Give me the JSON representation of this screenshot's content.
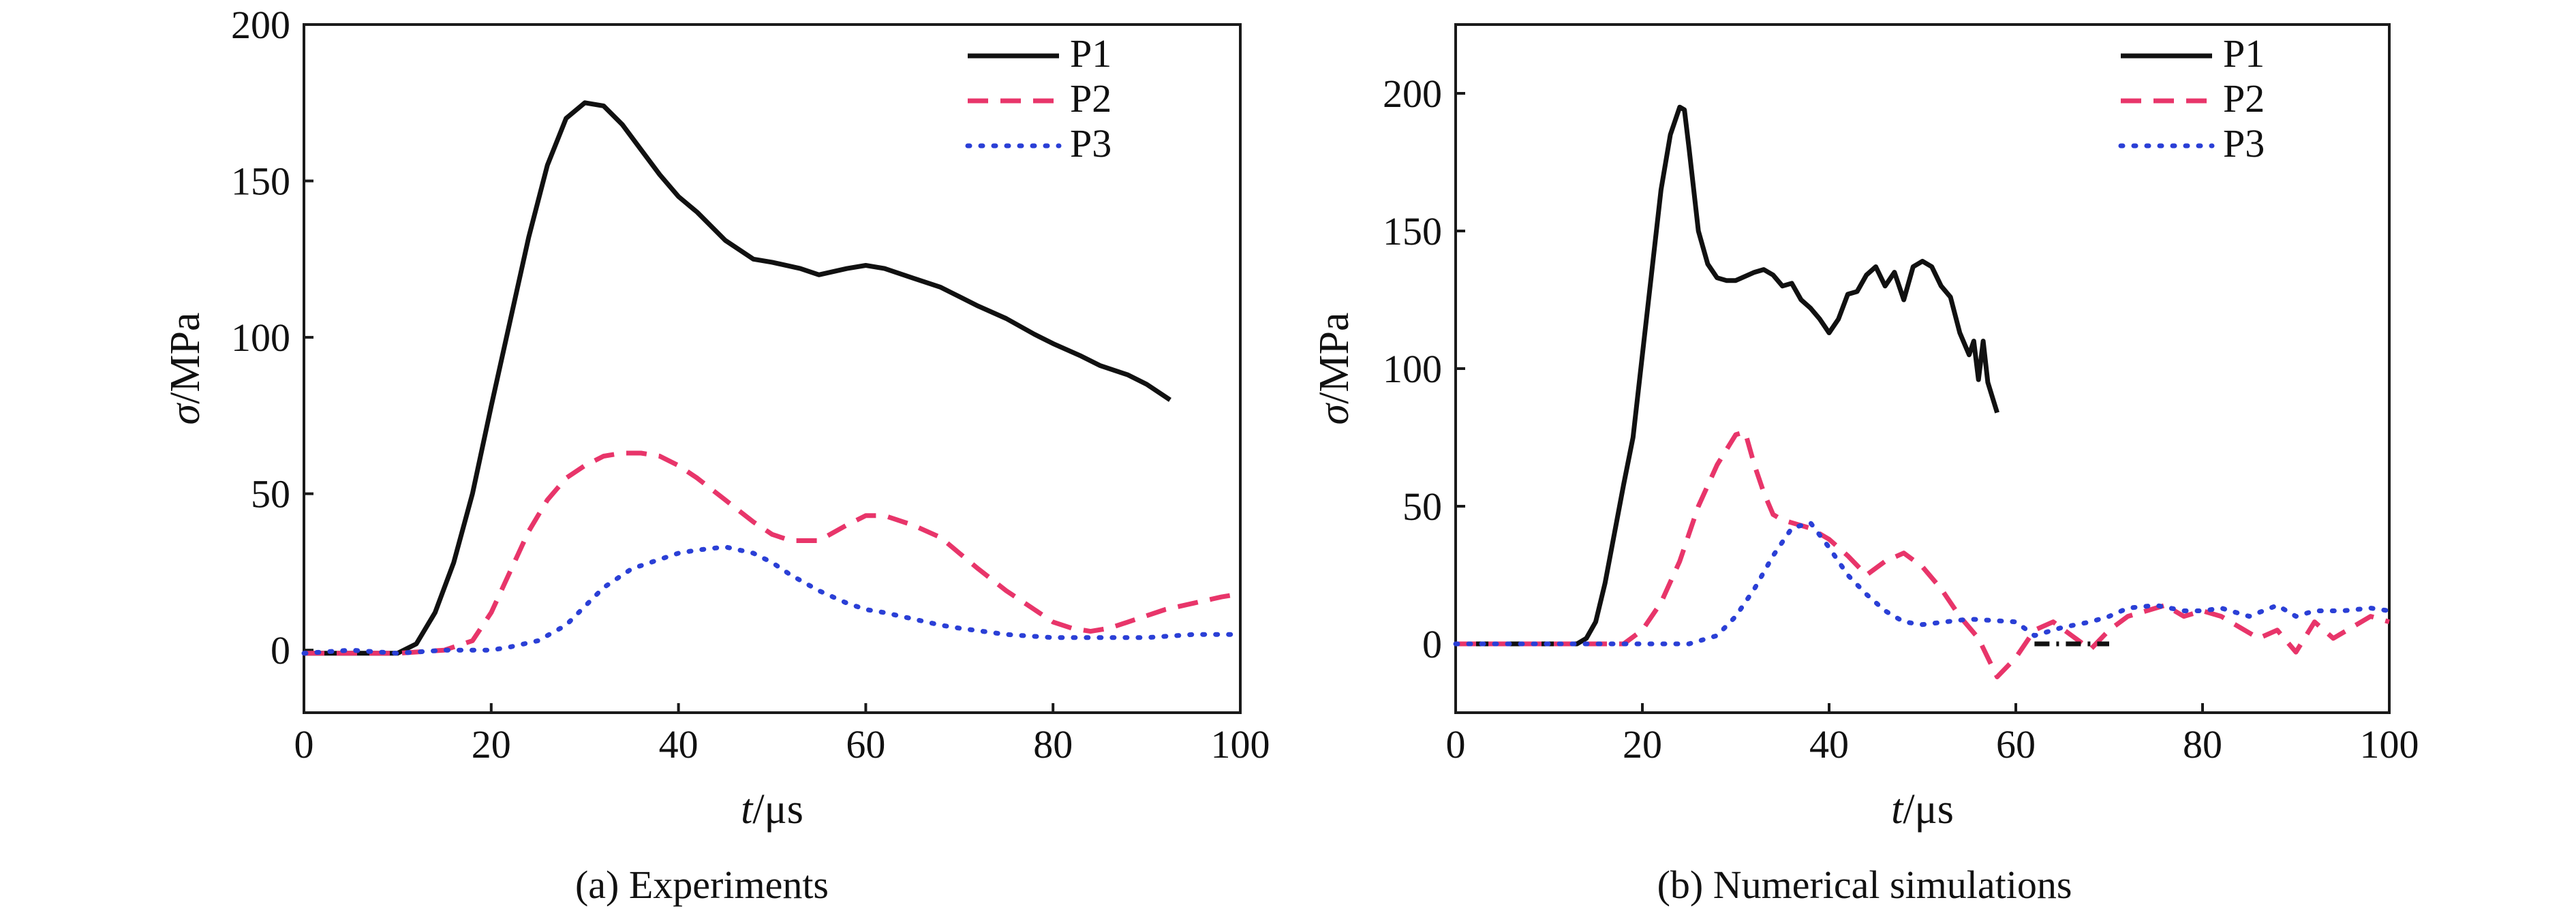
{
  "figure_captions": [
    "(a) Experiments",
    "(b) Numerical simulations"
  ],
  "colors": {
    "P1": "#111111",
    "P2": "#e8356a",
    "P3": "#2a3fd6"
  },
  "chart_data": [
    {
      "type": "line",
      "caption": "(a) Experiments",
      "title": "",
      "xlabel_italic": "t",
      "xlabel_unit": "/μs",
      "ylabel_italic": "σ",
      "ylabel_unit": "/MPa",
      "xlim": [
        0,
        100
      ],
      "ylim": [
        -20,
        200
      ],
      "xticks": [
        0,
        20,
        40,
        60,
        80,
        100
      ],
      "yticks": [
        0,
        50,
        100,
        150,
        200
      ],
      "grid": false,
      "legend_position": "top-right",
      "series": [
        {
          "name": "P1",
          "color": "#111111",
          "dash": "solid",
          "x": [
            0,
            5,
            10,
            12,
            14,
            16,
            18,
            20,
            22,
            24,
            26,
            28,
            30,
            32,
            34,
            36,
            38,
            40,
            42,
            45,
            48,
            50,
            53,
            55,
            58,
            60,
            62,
            65,
            68,
            70,
            72,
            75,
            78,
            80,
            83,
            85,
            88,
            90,
            92.5
          ],
          "y": [
            -1,
            -1,
            -1,
            2,
            12,
            28,
            50,
            78,
            105,
            132,
            155,
            170,
            175,
            174,
            168,
            160,
            152,
            145,
            140,
            131,
            125,
            124,
            122,
            120,
            122,
            123,
            122,
            119,
            116,
            113,
            110,
            106,
            101,
            98,
            94,
            91,
            88,
            85,
            80
          ]
        },
        {
          "name": "P2",
          "color": "#e8356a",
          "dash": "dashed",
          "x": [
            0,
            5,
            10,
            15,
            18,
            20,
            22,
            24,
            26,
            28,
            30,
            32,
            34,
            36,
            38,
            40,
            42,
            45,
            48,
            50,
            52,
            55,
            58,
            60,
            62,
            65,
            68,
            70,
            72,
            75,
            78,
            80,
            82,
            84,
            86,
            88,
            90,
            92,
            95,
            98,
            100
          ],
          "y": [
            -1,
            -1,
            -1,
            0,
            3,
            12,
            25,
            38,
            48,
            55,
            59,
            62,
            63,
            63,
            62,
            59,
            55,
            48,
            41,
            37,
            35,
            35,
            40,
            43,
            43,
            40,
            36,
            31,
            26,
            19,
            13,
            9,
            7,
            6,
            7,
            9,
            11,
            13,
            15,
            17,
            18
          ]
        },
        {
          "name": "P3",
          "color": "#2a3fd6",
          "dash": "dotted",
          "x": [
            0,
            5,
            10,
            15,
            20,
            22,
            25,
            28,
            30,
            32,
            35,
            38,
            40,
            42,
            45,
            48,
            50,
            52,
            55,
            58,
            60,
            62,
            65,
            68,
            70,
            75,
            80,
            85,
            90,
            95,
            100
          ],
          "y": [
            -1,
            0,
            -1,
            0,
            0,
            1,
            3,
            8,
            14,
            20,
            26,
            29,
            31,
            32,
            33,
            31,
            28,
            24,
            19,
            15,
            13,
            12,
            10,
            8,
            7,
            5,
            4,
            4,
            4,
            5,
            5
          ]
        }
      ]
    },
    {
      "type": "line",
      "caption": "(b) Numerical simulations",
      "title": "",
      "xlabel_italic": "t",
      "xlabel_unit": "/μs",
      "ylabel_italic": "σ",
      "ylabel_unit": "/MPa",
      "xlim": [
        0,
        100
      ],
      "ylim": [
        -25,
        225
      ],
      "xticks": [
        0,
        20,
        40,
        60,
        80,
        100
      ],
      "yticks": [
        0,
        50,
        100,
        150,
        200
      ],
      "grid": false,
      "legend_position": "top-right",
      "series": [
        {
          "name": "P1",
          "color": "#111111",
          "dash": "solid",
          "x": [
            0,
            10,
            13,
            14,
            15,
            16,
            17,
            18,
            19,
            20,
            21,
            22,
            23,
            24,
            24.5,
            25,
            26,
            27,
            28,
            29,
            30,
            32,
            33,
            34,
            35,
            36,
            37,
            38,
            39,
            40,
            41,
            42,
            43,
            44,
            45,
            46,
            47,
            48,
            49,
            50,
            51,
            52,
            53,
            54,
            55,
            55.5,
            56,
            56.5,
            57,
            58
          ],
          "y": [
            0,
            0,
            0,
            2,
            8,
            22,
            40,
            58,
            75,
            105,
            135,
            165,
            185,
            195,
            194,
            180,
            150,
            138,
            133,
            132,
            132,
            135,
            136,
            134,
            130,
            131,
            125,
            122,
            118,
            113,
            118,
            127,
            128,
            134,
            137,
            130,
            135,
            125,
            137,
            139,
            137,
            130,
            126,
            113,
            105,
            110,
            96,
            110,
            95,
            84
          ]
        },
        {
          "name": "P2",
          "color": "#e8356a",
          "dash": "dashed",
          "x": [
            0,
            15,
            18,
            20,
            22,
            24,
            26,
            28,
            30,
            31,
            32,
            33,
            34,
            35,
            36,
            38,
            40,
            42,
            44,
            46,
            48,
            50,
            52,
            54,
            56,
            58,
            60,
            62,
            64,
            66,
            68,
            70,
            72,
            74,
            76,
            78,
            80,
            82,
            84,
            86,
            88,
            90,
            92,
            94,
            96,
            98,
            100
          ],
          "y": [
            0,
            0,
            0,
            5,
            15,
            30,
            50,
            65,
            76,
            77,
            65,
            55,
            47,
            45,
            44,
            42,
            38,
            32,
            25,
            30,
            33,
            28,
            20,
            10,
            2,
            -12,
            -5,
            5,
            8,
            3,
            -2,
            5,
            10,
            12,
            14,
            10,
            12,
            10,
            6,
            2,
            5,
            -3,
            8,
            2,
            6,
            10,
            8
          ]
        },
        {
          "name": "P3",
          "color": "#2a3fd6",
          "dash": "dotted",
          "x": [
            0,
            20,
            25,
            28,
            30,
            32,
            34,
            36,
            38,
            40,
            42,
            44,
            46,
            48,
            50,
            55,
            60,
            62,
            65,
            68,
            70,
            72,
            75,
            78,
            80,
            82,
            85,
            88,
            90,
            92,
            95,
            98,
            100
          ],
          "y": [
            0,
            0,
            0,
            3,
            10,
            20,
            32,
            42,
            44,
            35,
            25,
            18,
            12,
            8,
            7,
            9,
            8,
            3,
            6,
            8,
            10,
            13,
            14,
            12,
            12,
            13,
            10,
            14,
            10,
            12,
            12,
            13,
            12
          ]
        },
        {
          "name": "",
          "color": "#111111",
          "dash": "dashdot",
          "x": [
            62,
            70
          ],
          "y": [
            0,
            0
          ]
        }
      ]
    }
  ]
}
